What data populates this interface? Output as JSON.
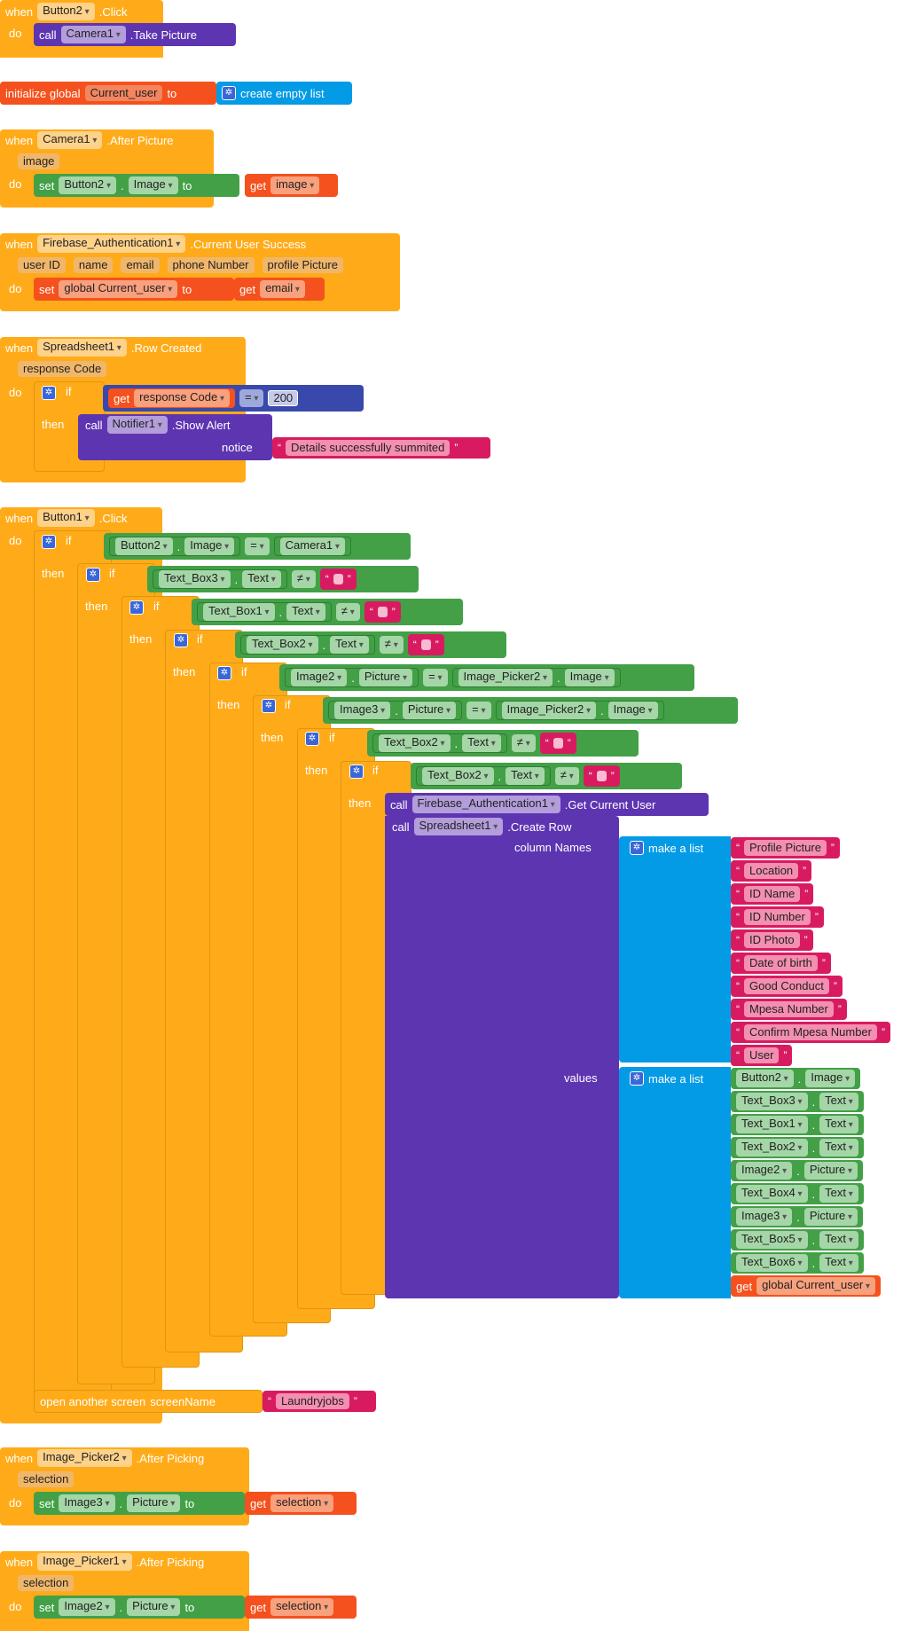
{
  "kw": {
    "when": "when",
    "do": "do",
    "call": "call",
    "set": "set",
    "to": "to",
    "get": "get",
    "if": "if",
    "then": "then",
    "initialize_global": "initialize global",
    "create_empty_list": "create empty list",
    "make_a_list": "make a list",
    "column_names": "column Names",
    "values": "values",
    "notice": "notice",
    "open_another_screen": "open another screen",
    "screen_name": "screenName",
    "dot": ".",
    "eq": "=",
    "neq": "≠",
    "open_quote": "“",
    "close_quote": "”"
  },
  "e1": {
    "component": "Button2",
    "event": ".Click",
    "call_component": "Camera1",
    "method": ".Take Picture"
  },
  "e2": {
    "var": "Current_user"
  },
  "e3": {
    "component": "Camera1",
    "event": ".After Picture",
    "param": "image",
    "set_component": "Button2",
    "prop": "Image",
    "get_var": "image"
  },
  "e4": {
    "component": "Firebase_Authentication1",
    "event": ".Current User Success",
    "params": [
      "user ID",
      "name",
      "email",
      "phone Number",
      "profile Picture"
    ],
    "set_var": "global Current_user",
    "get_var": "email"
  },
  "e5": {
    "component": "Spreadsheet1",
    "event": ".Row Created",
    "param": "response Code",
    "get_var": "response Code",
    "number": "200",
    "call_component": "Notifier1",
    "method": ".Show Alert",
    "notice_text": "Details successfully summited"
  },
  "e6": {
    "component": "Button1",
    "event": ".Click",
    "c1": {
      "a": "Button2",
      "ap": "Image",
      "b": "Camera1"
    },
    "c2": {
      "a": "Text_Box3",
      "ap": "Text"
    },
    "c3": {
      "a": "Text_Box1",
      "ap": "Text"
    },
    "c4": {
      "a": "Text_Box2",
      "ap": "Text"
    },
    "c5": {
      "a": "Image2",
      "ap": "Picture",
      "b": "Image_Picker2",
      "bp": "Image"
    },
    "c6": {
      "a": "Image3",
      "ap": "Picture",
      "b": "Image_Picker2",
      "bp": "Image"
    },
    "c7": {
      "a": "Text_Box2",
      "ap": "Text"
    },
    "c8": {
      "a": "Text_Box2",
      "ap": "Text"
    },
    "call_auth_component": "Firebase_Authentication1",
    "call_auth_method": ".Get Current User",
    "call_sheet_component": "Spreadsheet1",
    "call_sheet_method": ".Create Row",
    "columns": [
      "Profile Picture",
      "Location",
      "ID Name",
      "ID Number",
      "ID Photo",
      "Date of birth",
      "Good Conduct",
      "Mpesa Number",
      "Confirm Mpesa Number",
      "User"
    ],
    "values": [
      {
        "c": "Button2",
        "p": "Image"
      },
      {
        "c": "Text_Box3",
        "p": "Text"
      },
      {
        "c": "Text_Box1",
        "p": "Text"
      },
      {
        "c": "Text_Box2",
        "p": "Text"
      },
      {
        "c": "Image2",
        "p": "Picture"
      },
      {
        "c": "Text_Box4",
        "p": "Text"
      },
      {
        "c": "Image3",
        "p": "Picture"
      },
      {
        "c": "Text_Box5",
        "p": "Text"
      },
      {
        "c": "Text_Box6",
        "p": "Text"
      }
    ],
    "last_value_get": "global Current_user",
    "screen": "Laundryjobs"
  },
  "e7": {
    "component": "Image_Picker2",
    "event": ".After Picking",
    "param": "selection",
    "set_component": "Image3",
    "prop": "Picture",
    "get_var": "selection"
  },
  "e8": {
    "component": "Image_Picker1",
    "event": ".After Picking",
    "param": "selection",
    "set_component": "Image2",
    "prop": "Picture",
    "get_var": "selection"
  },
  "colors": {
    "event": "#ffab19",
    "procedure": "#5e35b1",
    "setter": "#43a047",
    "variable": "#f4511e",
    "logic": "#3949ab",
    "text": "#d81b60",
    "list": "#039be5"
  }
}
